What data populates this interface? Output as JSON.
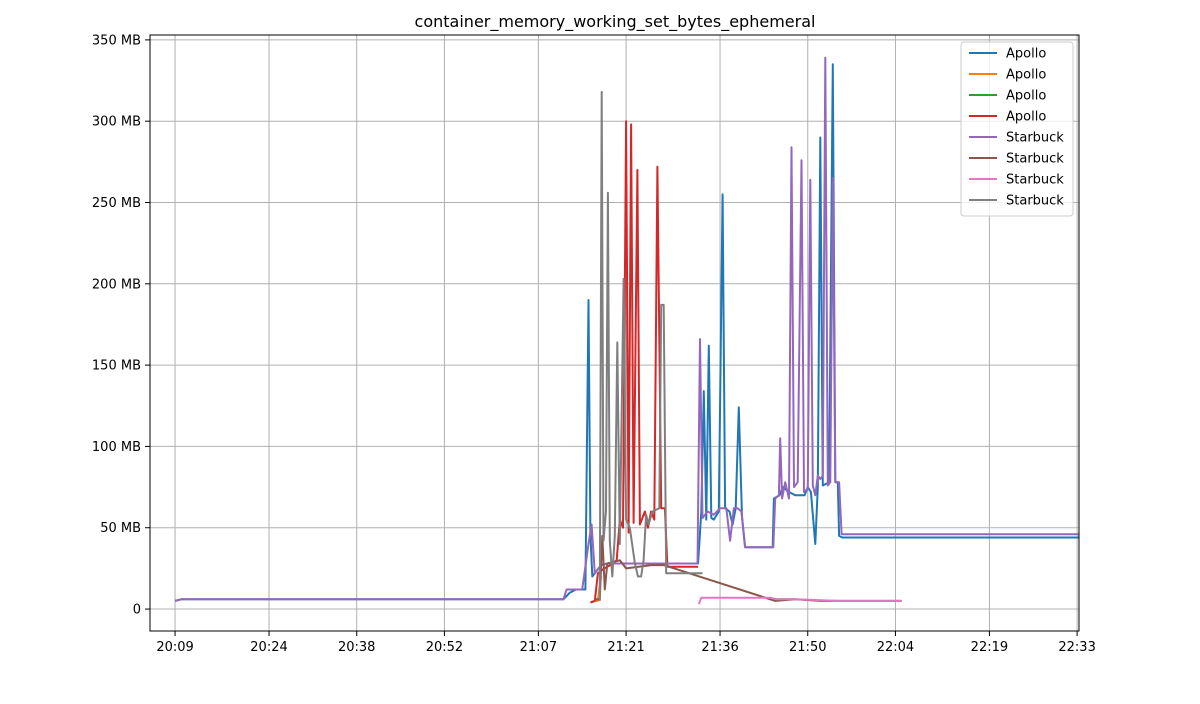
{
  "chart_data": {
    "type": "line",
    "title": "container_memory_working_set_bytes_ephemeral",
    "xlabel": "",
    "ylabel": "",
    "x_unit": "minutes",
    "x_ticks": [
      {
        "value": 1269,
        "label": "20:09"
      },
      {
        "value": 1284,
        "label": "20:24"
      },
      {
        "value": 1298,
        "label": "20:38"
      },
      {
        "value": 1312,
        "label": "20:52"
      },
      {
        "value": 1327,
        "label": "21:07"
      },
      {
        "value": 1341,
        "label": "21:21"
      },
      {
        "value": 1356,
        "label": "21:36"
      },
      {
        "value": 1370,
        "label": "21:50"
      },
      {
        "value": 1384,
        "label": "22:04"
      },
      {
        "value": 1399,
        "label": "22:19"
      },
      {
        "value": 1413,
        "label": "22:33"
      }
    ],
    "y_ticks": [
      {
        "value": 0,
        "label": "0"
      },
      {
        "value": 50,
        "label": "50 MB"
      },
      {
        "value": 100,
        "label": "100 MB"
      },
      {
        "value": 150,
        "label": "150 MB"
      },
      {
        "value": 200,
        "label": "200 MB"
      },
      {
        "value": 250,
        "label": "250 MB"
      },
      {
        "value": 300,
        "label": "300 MB"
      },
      {
        "value": 350,
        "label": "350 MB"
      }
    ],
    "xlim": [
      1265,
      1413.3
    ],
    "ylim": [
      -13.5,
      353
    ],
    "grid": true,
    "legend_position": "top-right",
    "series": [
      {
        "name": "Apollo",
        "color": "#1f77b4",
        "points": [
          [
            1269,
            5
          ],
          [
            1270,
            6
          ],
          [
            1300,
            6
          ],
          [
            1331,
            6
          ],
          [
            1332,
            10
          ],
          [
            1333,
            12
          ],
          [
            1334.5,
            12
          ],
          [
            1335,
            190
          ],
          [
            1335.3,
            46
          ],
          [
            1335.6,
            20
          ],
          [
            1336,
            22
          ],
          [
            1337,
            27
          ],
          [
            1338,
            28
          ],
          [
            1350,
            28
          ],
          [
            1352.5,
            28
          ],
          [
            1353,
            60
          ],
          [
            1353.4,
            134
          ],
          [
            1353.8,
            55
          ],
          [
            1354.2,
            162
          ],
          [
            1354.6,
            56
          ],
          [
            1355,
            55
          ],
          [
            1355.8,
            60
          ],
          [
            1356.4,
            255
          ],
          [
            1356.8,
            62
          ],
          [
            1357.5,
            60
          ],
          [
            1358,
            52
          ],
          [
            1358.5,
            62
          ],
          [
            1359,
            124
          ],
          [
            1359.5,
            57
          ],
          [
            1360,
            38
          ],
          [
            1364.4,
            38
          ],
          [
            1364.6,
            68
          ],
          [
            1365.5,
            70
          ],
          [
            1366,
            75
          ],
          [
            1367,
            72
          ],
          [
            1368,
            70
          ],
          [
            1369.5,
            70
          ],
          [
            1370,
            75
          ],
          [
            1370.5,
            72
          ],
          [
            1371.2,
            40
          ],
          [
            1371.6,
            75
          ],
          [
            1372,
            290
          ],
          [
            1372.4,
            76
          ],
          [
            1373.4,
            78
          ],
          [
            1374,
            335
          ],
          [
            1374.4,
            78
          ],
          [
            1374.8,
            78
          ],
          [
            1375,
            45
          ],
          [
            1375.5,
            44
          ],
          [
            1421,
            44
          ]
        ]
      },
      {
        "name": "Apollo",
        "color": "#ff7f0e",
        "points": [
          [
            1335.4,
            4
          ],
          [
            1336,
            5
          ],
          [
            1336.5,
            5
          ],
          [
            1336.7,
            12
          ],
          [
            1337,
            20
          ]
        ]
      },
      {
        "name": "Apollo",
        "color": "#2ca02c",
        "points": [
          [
            1364.8,
            6
          ],
          [
            1366,
            6
          ],
          [
            1368,
            6
          ]
        ]
      },
      {
        "name": "Apollo",
        "color": "#d62728",
        "points": [
          [
            1335.3,
            4
          ],
          [
            1336,
            5
          ],
          [
            1336.5,
            22
          ],
          [
            1337.5,
            25
          ],
          [
            1338.5,
            27
          ],
          [
            1339.5,
            30
          ],
          [
            1340,
            55
          ],
          [
            1340.5,
            50
          ],
          [
            1341,
            300
          ],
          [
            1341.4,
            47
          ],
          [
            1341.8,
            298
          ],
          [
            1342.2,
            53
          ],
          [
            1342.8,
            270
          ],
          [
            1343.2,
            52
          ],
          [
            1344,
            60
          ],
          [
            1344.5,
            50
          ],
          [
            1345,
            60
          ],
          [
            1345.5,
            55
          ],
          [
            1346,
            272
          ],
          [
            1346.6,
            62
          ],
          [
            1347.2,
            62
          ],
          [
            1347.6,
            26
          ],
          [
            1352.5,
            26
          ]
        ]
      },
      {
        "name": "Starbuck",
        "color": "#9467bd",
        "points": [
          [
            1269,
            5
          ],
          [
            1270,
            6
          ],
          [
            1300,
            6
          ],
          [
            1331,
            6
          ],
          [
            1331.5,
            12
          ],
          [
            1334,
            12
          ],
          [
            1335,
            40
          ],
          [
            1335.5,
            52
          ],
          [
            1336,
            22
          ],
          [
            1337,
            27
          ],
          [
            1338,
            28
          ],
          [
            1352.4,
            28
          ],
          [
            1352.8,
            166
          ],
          [
            1353.2,
            56
          ],
          [
            1354,
            60
          ],
          [
            1355,
            58
          ],
          [
            1356,
            62
          ],
          [
            1357,
            62
          ],
          [
            1357.6,
            42
          ],
          [
            1358.2,
            62
          ],
          [
            1358.8,
            62
          ],
          [
            1359.4,
            60
          ],
          [
            1360,
            38
          ],
          [
            1364.5,
            38
          ],
          [
            1364.8,
            68
          ],
          [
            1365.4,
            70
          ],
          [
            1365.6,
            105
          ],
          [
            1365.9,
            68
          ],
          [
            1366.4,
            78
          ],
          [
            1367,
            68
          ],
          [
            1367.4,
            284
          ],
          [
            1367.8,
            75
          ],
          [
            1368.4,
            78
          ],
          [
            1369,
            276
          ],
          [
            1369.4,
            72
          ],
          [
            1370,
            74
          ],
          [
            1370.4,
            264
          ],
          [
            1370.8,
            76
          ],
          [
            1371.2,
            70
          ],
          [
            1371.6,
            82
          ],
          [
            1372,
            80
          ],
          [
            1372.4,
            82
          ],
          [
            1372.8,
            339
          ],
          [
            1373.2,
            76
          ],
          [
            1373.6,
            78
          ],
          [
            1374,
            265
          ],
          [
            1374.4,
            78
          ],
          [
            1375,
            78
          ],
          [
            1375.4,
            46
          ],
          [
            1421,
            46
          ]
        ]
      },
      {
        "name": "Starbuck",
        "color": "#8c564b",
        "points": [
          [
            1336,
            6
          ],
          [
            1336.8,
            6
          ],
          [
            1337.2,
            45
          ],
          [
            1337.6,
            12
          ],
          [
            1338,
            28
          ],
          [
            1340,
            30
          ],
          [
            1341,
            25
          ],
          [
            1343,
            26
          ],
          [
            1345,
            27
          ],
          [
            1347,
            27
          ],
          [
            1364.8,
            5
          ],
          [
            1368,
            6
          ],
          [
            1372,
            5
          ],
          [
            1380,
            5
          ],
          [
            1385,
            5
          ]
        ]
      },
      {
        "name": "Starbuck",
        "color": "#e377c2",
        "points": [
          [
            1352.6,
            3
          ],
          [
            1353,
            7
          ],
          [
            1356,
            7
          ],
          [
            1360,
            7
          ],
          [
            1364,
            7
          ],
          [
            1365,
            6
          ],
          [
            1368,
            6
          ],
          [
            1375,
            5
          ],
          [
            1385,
            5
          ]
        ]
      },
      {
        "name": "Starbuck",
        "color": "#7f7f7f",
        "points": [
          [
            1336.8,
            5
          ],
          [
            1337.1,
            318
          ],
          [
            1337.4,
            42
          ],
          [
            1337.8,
            60
          ],
          [
            1338.1,
            256
          ],
          [
            1338.4,
            42
          ],
          [
            1338.8,
            20
          ],
          [
            1339.2,
            45
          ],
          [
            1339.6,
            164
          ],
          [
            1340,
            40
          ],
          [
            1340.6,
            203
          ],
          [
            1341,
            55
          ],
          [
            1341.6,
            50
          ],
          [
            1342.4,
            28
          ],
          [
            1342.9,
            20
          ],
          [
            1343.4,
            20
          ],
          [
            1343.8,
            30
          ],
          [
            1344.2,
            58
          ],
          [
            1344.6,
            52
          ],
          [
            1345.2,
            60
          ],
          [
            1346.3,
            62
          ],
          [
            1346.6,
            187
          ],
          [
            1347,
            187
          ],
          [
            1347.4,
            22
          ],
          [
            1353.2,
            22
          ]
        ]
      }
    ]
  }
}
